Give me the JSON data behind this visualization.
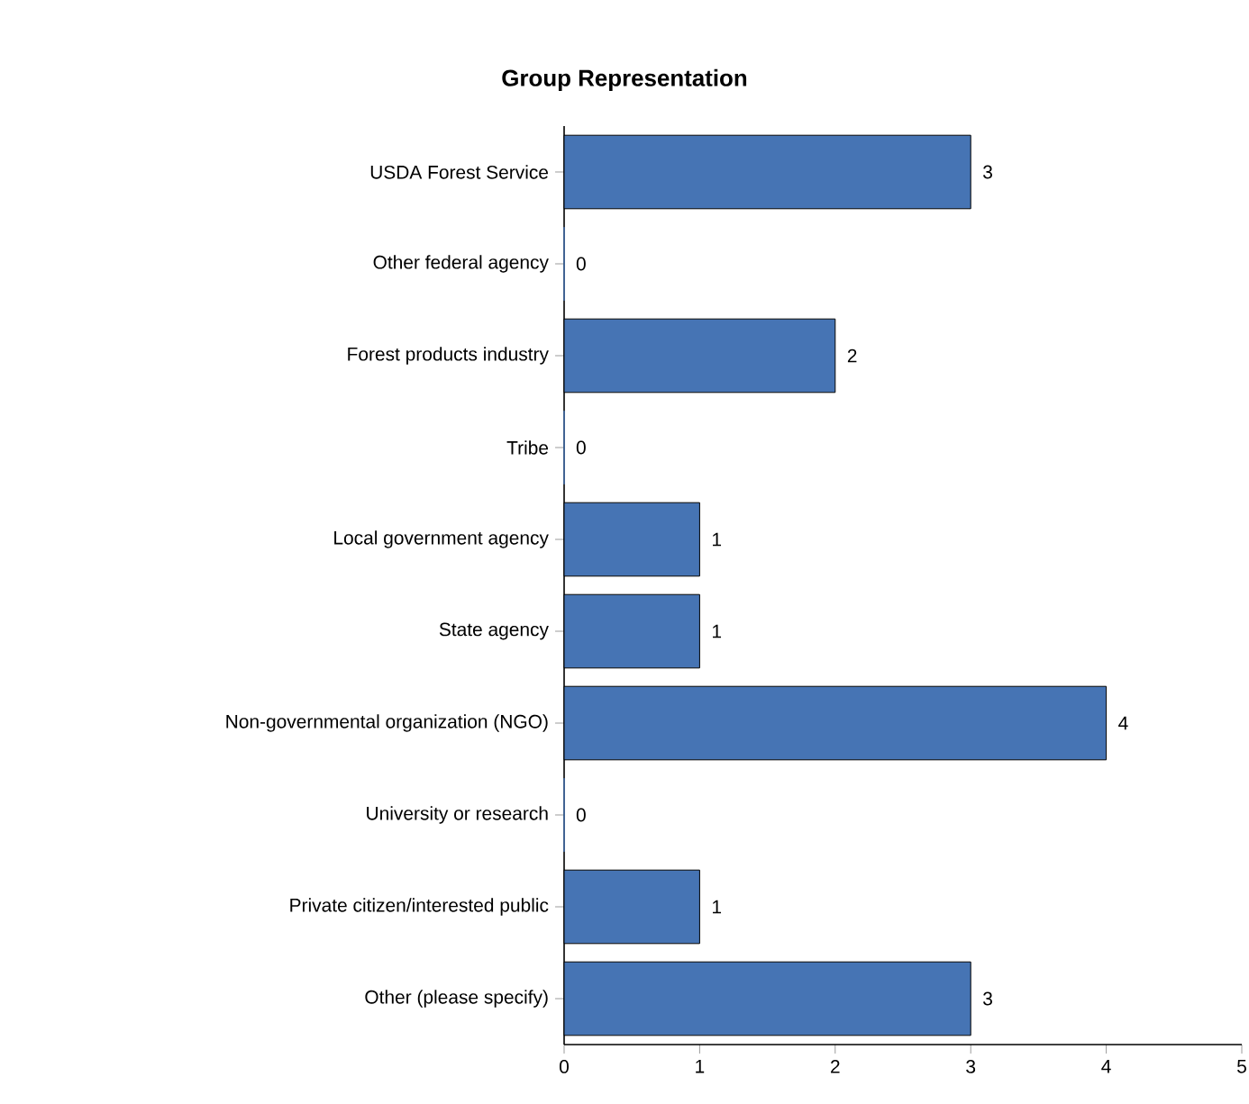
{
  "chart_data": {
    "type": "bar",
    "orientation": "horizontal",
    "title": "Group Representation",
    "categories": [
      "USDA Forest Service",
      "Other federal agency",
      "Forest products industry",
      "Tribe",
      "Local government agency",
      "State agency",
      "Non-governmental organization (NGO)",
      "University or research",
      "Private citizen/interested public",
      "Other (please specify)"
    ],
    "values": [
      3,
      0,
      2,
      0,
      1,
      1,
      4,
      0,
      1,
      3
    ],
    "color": "#4674b4",
    "xlim": [
      0,
      5
    ],
    "xticks": [
      0,
      1,
      2,
      3,
      4,
      5
    ],
    "data_labels": true
  }
}
